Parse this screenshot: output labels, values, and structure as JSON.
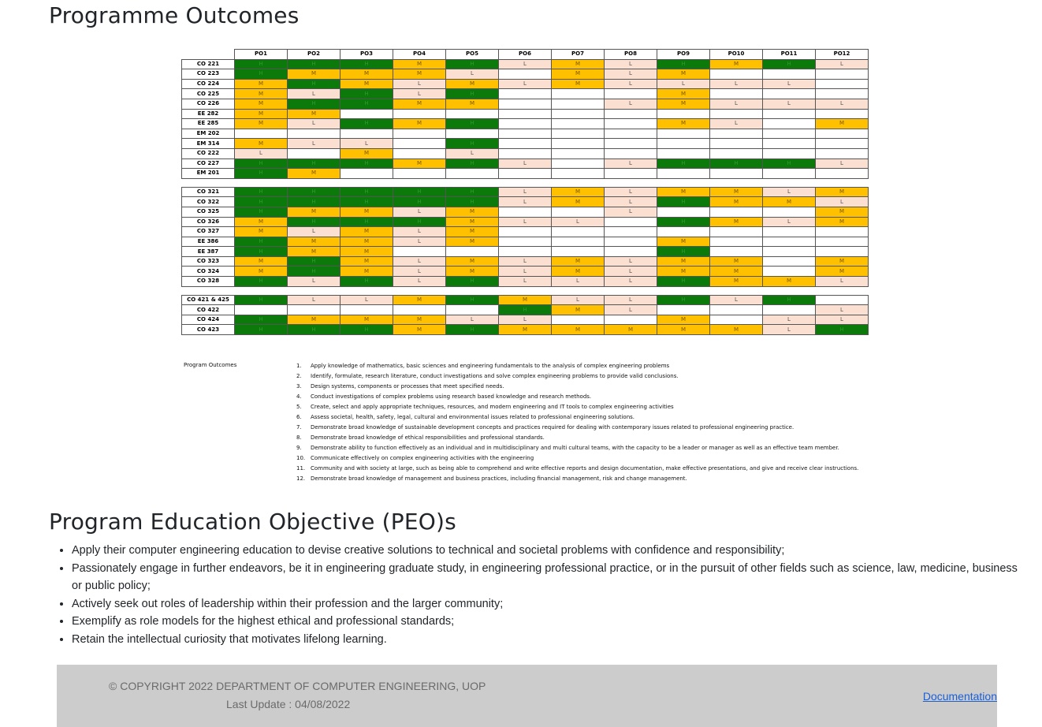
{
  "page": {
    "po_title": "Programme Outcomes",
    "peo_title": "Program Education Objective (PEO)s"
  },
  "matrix": {
    "headers": [
      "PO1",
      "PO2",
      "PO3",
      "PO4",
      "PO5",
      "PO6",
      "PO7",
      "PO8",
      "PO9",
      "PO10",
      "PO11",
      "PO12"
    ],
    "colors": {
      "H": "#0b7a0b",
      "M": "#ffc000",
      "L": "#fbe0d2"
    },
    "groups": [
      [
        {
          "course": "CO 221",
          "cells": [
            "H",
            "H",
            "H",
            "M",
            "H",
            "L",
            "M",
            "L",
            "H",
            "M",
            "H",
            "L"
          ]
        },
        {
          "course": "CO 223",
          "cells": [
            "H",
            "M",
            "M",
            "M",
            "L",
            "",
            "M",
            "L",
            "M",
            "",
            "",
            ""
          ]
        },
        {
          "course": "CO 224",
          "cells": [
            "M",
            "H",
            "M",
            "L",
            "M",
            "L",
            "M",
            "L",
            "L",
            "L",
            "L",
            ""
          ]
        },
        {
          "course": "CO 225",
          "cells": [
            "M",
            "L",
            "H",
            "L",
            "H",
            "",
            "",
            "",
            "M",
            "",
            "",
            ""
          ]
        },
        {
          "course": "CO 226",
          "cells": [
            "M",
            "H",
            "H",
            "M",
            "M",
            "",
            "",
            "L",
            "M",
            "L",
            "L",
            "L"
          ]
        },
        {
          "course": "EE 282",
          "cells": [
            "M",
            "M",
            "",
            "",
            "",
            "",
            "",
            "",
            "",
            "",
            "",
            ""
          ]
        },
        {
          "course": "EE 285",
          "cells": [
            "M",
            "L",
            "H",
            "M",
            "H",
            "",
            "",
            "",
            "M",
            "L",
            "",
            "M"
          ]
        },
        {
          "course": "EM 202",
          "cells": [
            "",
            "",
            "",
            "",
            "",
            "",
            "",
            "",
            "",
            "",
            "",
            ""
          ]
        },
        {
          "course": "EM 314",
          "cells": [
            "M",
            "L",
            "L",
            "",
            "H",
            "",
            "",
            "",
            "",
            "",
            "",
            ""
          ]
        },
        {
          "course": "CO 222",
          "cells": [
            "L",
            "",
            "M",
            "",
            "L",
            "",
            "",
            "",
            "",
            "",
            "",
            ""
          ]
        },
        {
          "course": "CO 227",
          "cells": [
            "H",
            "H",
            "H",
            "M",
            "H",
            "L",
            "",
            "L",
            "H",
            "H",
            "H",
            "L"
          ]
        },
        {
          "course": "EM 201",
          "cells": [
            "H",
            "M",
            "",
            "",
            "",
            "",
            "",
            "",
            "",
            "",
            "",
            ""
          ]
        }
      ],
      [
        {
          "course": "CO 321",
          "cells": [
            "H",
            "H",
            "H",
            "H",
            "H",
            "L",
            "M",
            "L",
            "M",
            "M",
            "L",
            "M"
          ]
        },
        {
          "course": "CO 322",
          "cells": [
            "H",
            "H",
            "H",
            "H",
            "H",
            "L",
            "M",
            "L",
            "H",
            "M",
            "M",
            "L"
          ]
        },
        {
          "course": "CO 325",
          "cells": [
            "H",
            "M",
            "M",
            "L",
            "M",
            "",
            "",
            "L",
            "",
            "",
            "",
            "M"
          ]
        },
        {
          "course": "CO 326",
          "cells": [
            "M",
            "H",
            "H",
            "H",
            "M",
            "L",
            "L",
            "",
            "H",
            "M",
            "L",
            "M"
          ]
        },
        {
          "course": "CO 327",
          "cells": [
            "M",
            "L",
            "M",
            "L",
            "M",
            "",
            "",
            "",
            "",
            "",
            "",
            ""
          ]
        },
        {
          "course": "EE 386",
          "cells": [
            "H",
            "M",
            "M",
            "L",
            "M",
            "",
            "",
            "",
            "M",
            "",
            "",
            ""
          ]
        },
        {
          "course": "EE 387",
          "cells": [
            "H",
            "M",
            "M",
            "",
            "",
            "",
            "",
            "",
            "H",
            "",
            "",
            ""
          ]
        },
        {
          "course": "CO 323",
          "cells": [
            "M",
            "H",
            "M",
            "L",
            "M",
            "L",
            "M",
            "L",
            "M",
            "M",
            "",
            "M"
          ]
        },
        {
          "course": "CO 324",
          "cells": [
            "M",
            "H",
            "M",
            "L",
            "M",
            "L",
            "M",
            "L",
            "M",
            "M",
            "",
            "M"
          ]
        },
        {
          "course": "CO 328",
          "cells": [
            "H",
            "L",
            "H",
            "L",
            "H",
            "L",
            "L",
            "L",
            "H",
            "M",
            "M",
            "L"
          ]
        }
      ],
      [
        {
          "course": "CO 421 & 425",
          "cells": [
            "H",
            "L",
            "L",
            "M",
            "H",
            "M",
            "L",
            "L",
            "H",
            "L",
            "H",
            ""
          ]
        },
        {
          "course": "CO 422",
          "cells": [
            "",
            "",
            "",
            "",
            "",
            "H",
            "M",
            "L",
            "",
            "",
            "",
            "L"
          ]
        },
        {
          "course": "CO 424",
          "cells": [
            "H",
            "M",
            "M",
            "M",
            "L",
            "L",
            "",
            "",
            "M",
            "",
            "L",
            "L"
          ]
        },
        {
          "course": "CO 423",
          "cells": [
            "H",
            "H",
            "H",
            "M",
            "H",
            "M",
            "M",
            "M",
            "M",
            "M",
            "L",
            "H"
          ]
        }
      ]
    ]
  },
  "legend": {
    "title": "Program Outcomes",
    "items": [
      "Apply knowledge of mathematics, basic sciences and engineering fundamentals to the analysis of complex engineering problems",
      "Identify, formulate, research literature, conduct investigations and solve complex engineering problems to provide valid conclusions.",
      "Design systems, components or processes that meet specified needs.",
      "Conduct investigations of complex problems using research based knowledge and research methods.",
      "Create, select and apply appropriate techniques, resources, and modern engineering and IT tools to complex engineering activities",
      "Assess societal, health, safety, legal, cultural and environmental issues related to professional engineering solutions.",
      "Demonstrate broad knowledge of sustainable development concepts and practices required for dealing with contemporary issues related to professional engineering practice.",
      "Demonstrate broad knowledge of ethical responsibilities and professional standards.",
      "Demonstrate ability to function effectively as an individual and in multidisciplinary and multi cultural teams, with the capacity to be a leader or manager as well as an effective team member.",
      "Communicate effectively on complex engineering activities with the engineering",
      "Community and with society at large, such as being able to comprehend and write effective reports and design documentation, make effective presentations, and give and receive clear instructions.",
      "Demonstrate broad knowledge of management and business practices, including financial management, risk and change management."
    ]
  },
  "peo": [
    "Apply their computer engineering education to devise creative solutions to technical and societal problems with confidence and responsibility;",
    "Passionately engage in further endeavors, be it in engineering graduate study, in engineering professional practice, or in the pursuit of other fields such as science, law, medicine, business or public policy;",
    "Actively seek out roles of leadership within their profession and the larger community;",
    "Exemplify as role models for the highest ethical and professional standards;",
    "Retain the intellectual curiosity that motivates lifelong learning."
  ],
  "footer": {
    "copyright": "© COPYRIGHT 2022 DEPARTMENT OF COMPUTER ENGINEERING, UOP",
    "last_update": "Last Update : 04/08/2022",
    "documentation": "Documentation"
  }
}
